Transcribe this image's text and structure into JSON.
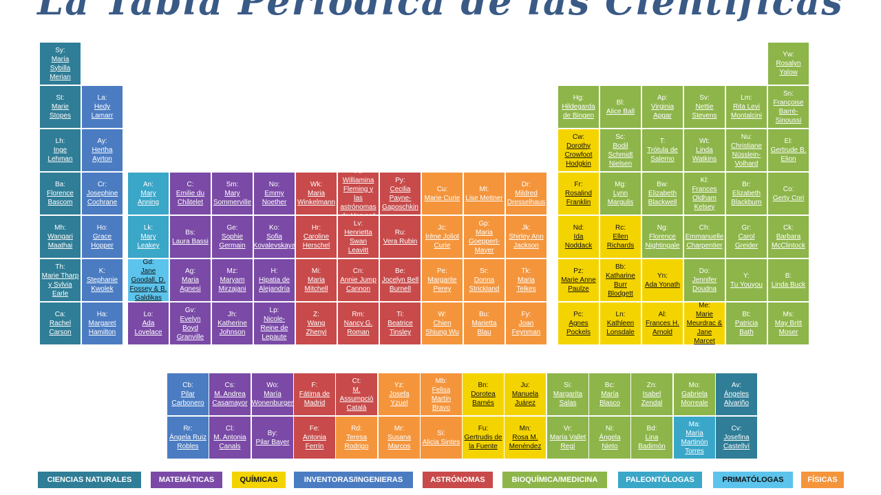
{
  "title": "La Tabla Periódica de las Científicas",
  "colors": {
    "naturales": "#2f7d96",
    "matematicas": "#7a4aa6",
    "quimicas": "#f4d400",
    "inventoras": "#4b7cc2",
    "astronomas": "#c84a4a",
    "bioquimica": "#8db54a",
    "paleontologas": "#3aa6c8",
    "primatologas": "#5cc4ec",
    "fisicas": "#f4953c"
  },
  "main": [
    [
      {
        "s": "Sy:",
        "n": "María Sybilla Merian",
        "c": "naturales"
      }
    ],
    [
      {
        "s": "St:",
        "n": "Marie Stopes",
        "c": "naturales"
      },
      {
        "s": "La:",
        "n": "Hedy Lamarr",
        "c": "inventoras"
      }
    ],
    [
      {
        "s": "Lh:",
        "n": "Inge Lehman",
        "c": "naturales"
      },
      {
        "s": "Ay:",
        "n": "Hertha Ayrton",
        "c": "inventoras"
      }
    ],
    [
      {
        "s": "Ba:",
        "n": "Florence Bascom",
        "c": "naturales"
      },
      {
        "s": "Cr:",
        "n": "Josephine Cochrane",
        "c": "inventoras"
      },
      {
        "s": "An:",
        "n": "Mary Anning",
        "c": "paleontologas"
      },
      {
        "s": "C:",
        "n": "Emilie du Châtelet",
        "c": "matematicas"
      },
      {
        "s": "Sm:",
        "n": "Mary Sommerville",
        "c": "matematicas"
      },
      {
        "s": "No:",
        "n": "Emmy Noether",
        "c": "matematicas"
      },
      {
        "s": "Wk:",
        "n": "Maria Winkelmann",
        "c": "astronomas"
      },
      {
        "s": "Fl:",
        "n": "Williamina Fleming y las astrónomas de Harvard",
        "c": "astronomas"
      },
      {
        "s": "Py:",
        "n": "Cecilia Payne-Gaposchkin",
        "c": "astronomas"
      },
      {
        "s": "Cu:",
        "n": "Marie Curie",
        "c": "fisicas"
      },
      {
        "s": "Mt:",
        "n": "Lise Meitner",
        "c": "fisicas"
      },
      {
        "s": "Dr:",
        "n": "Mildred Dresselhaus",
        "c": "fisicas"
      }
    ],
    [
      {
        "s": "Mh:",
        "n": "Wangari Maathai",
        "c": "naturales"
      },
      {
        "s": "Ho:",
        "n": "Grace Hopper",
        "c": "inventoras"
      },
      {
        "s": "Lk:",
        "n": "Mary Leakey",
        "c": "paleontologas"
      },
      {
        "s": "Bs:",
        "n": "Laura Bassi",
        "c": "matematicas"
      },
      {
        "s": "Ge:",
        "n": "Sophie Germain",
        "c": "matematicas"
      },
      {
        "s": "Ko:",
        "n": "Sofia Kovalevskaya",
        "c": "matematicas"
      },
      {
        "s": "Hr:",
        "n": "Caroline Herschel",
        "c": "astronomas"
      },
      {
        "s": "Lv:",
        "n": "Henrietta Swan Leavitt",
        "c": "astronomas"
      },
      {
        "s": "Ru:",
        "n": "Vera Rubin",
        "c": "astronomas"
      },
      {
        "s": "Jc:",
        "n": "Irène Joliot Curie",
        "c": "fisicas"
      },
      {
        "s": "Gp:",
        "n": "Maria Goeppert-Mayer",
        "c": "fisicas"
      },
      {
        "s": "Jk:",
        "n": "Shirley Ann Jackson",
        "c": "fisicas"
      }
    ],
    [
      {
        "s": "Th:",
        "n": "Marie Tharp y Sylvia Earle",
        "c": "naturales"
      },
      {
        "s": "K:",
        "n": "Stephanie Kwolek",
        "c": "inventoras"
      },
      {
        "s": "Gd:",
        "n": "Jane Goodall, D. Fossey & B. Galdikas",
        "c": "primatologas"
      },
      {
        "s": "Ag:",
        "n": "Maria Agnesi",
        "c": "matematicas"
      },
      {
        "s": "Mz:",
        "n": "Maryam Mirzajani",
        "c": "matematicas"
      },
      {
        "s": "H:",
        "n": "Hipatia de Alejandría",
        "c": "matematicas"
      },
      {
        "s": "Mi:",
        "n": "Maria Mitchell",
        "c": "astronomas"
      },
      {
        "s": "Cn:",
        "n": "Annie Jump Cannon",
        "c": "astronomas"
      },
      {
        "s": "Be:",
        "n": "Jocelyn Bell Burnell",
        "c": "astronomas"
      },
      {
        "s": "Pe:",
        "n": "Margarite Perey",
        "c": "fisicas"
      },
      {
        "s": "Sr:",
        "n": "Donna Strickland",
        "c": "fisicas"
      },
      {
        "s": "Tk:",
        "n": "Maria Telkes",
        "c": "fisicas"
      }
    ],
    [
      {
        "s": "Ca:",
        "n": "Rachel Carson",
        "c": "naturales"
      },
      {
        "s": "Ha:",
        "n": "Margaret Hamilton",
        "c": "inventoras"
      },
      {
        "s": "Lo:",
        "n": "Ada Lovelace",
        "c": "matematicas"
      },
      {
        "s": "Gv:",
        "n": "Evelyn Boyd Granville",
        "c": "matematicas"
      },
      {
        "s": "Jh:",
        "n": "Katherine Johnson",
        "c": "matematicas"
      },
      {
        "s": "Lp:",
        "n": "Nicole-Reine de Lepaute",
        "c": "matematicas"
      },
      {
        "s": "Z:",
        "n": "Wang Zhenyi",
        "c": "astronomas"
      },
      {
        "s": "Rm:",
        "n": "Nancy G. Roman",
        "c": "astronomas"
      },
      {
        "s": "Ti:",
        "n": "Beatrice Tinsley",
        "c": "astronomas"
      },
      {
        "s": "W:",
        "n": "Chien Shiung Wu",
        "c": "fisicas"
      },
      {
        "s": "Bu:",
        "n": "Marietta Blau",
        "c": "fisicas"
      },
      {
        "s": "Fy:",
        "n": "Joan Feynman",
        "c": "fisicas"
      }
    ]
  ],
  "right": [
    [
      {
        "s": "Yw:",
        "n": "Rosalyn Yalow",
        "c": "bioquimica"
      }
    ],
    [
      {
        "s": "Hg:",
        "n": "Hildegarda de Bingen",
        "c": "bioquimica"
      },
      {
        "s": "Bl:",
        "n": "Alice Ball",
        "c": "bioquimica"
      },
      {
        "s": "Ap:",
        "n": "Virginia Apgar",
        "c": "bioquimica"
      },
      {
        "s": "Sv:",
        "n": "Nettie Stevens",
        "c": "bioquimica"
      },
      {
        "s": "Lm:",
        "n": "Rita Levi Montalcini",
        "c": "bioquimica"
      },
      {
        "s": "Sn:",
        "n": "Françoise Barré-Sinoussi",
        "c": "bioquimica"
      }
    ],
    [
      {
        "s": "Cw:",
        "n": "Dorothy Crowfoot Hodgkin",
        "c": "quimicas"
      },
      {
        "s": "Sc:",
        "n": "Bodil Schmidt Nielsen",
        "c": "bioquimica"
      },
      {
        "s": "T:",
        "n": "Trótula de Salerno",
        "c": "bioquimica"
      },
      {
        "s": "Wt:",
        "n": "Linda Watkins",
        "c": "bioquimica"
      },
      {
        "s": "Nu:",
        "n": "Christiane Nüsslein-Volhard",
        "c": "bioquimica"
      },
      {
        "s": "El:",
        "n": "Gertrude B. Elion",
        "c": "bioquimica"
      }
    ],
    [
      {
        "s": "Fr:",
        "n": "Rosalind Franklin",
        "c": "quimicas"
      },
      {
        "s": "Mg:",
        "n": "Lynn Margulis",
        "c": "bioquimica"
      },
      {
        "s": "Bw:",
        "n": "Elizabeth Blackwell",
        "c": "bioquimica"
      },
      {
        "s": "Kl:",
        "n": "Frances Oldham Kelsey",
        "c": "bioquimica"
      },
      {
        "s": "Br:",
        "n": "Elizabeth Blackburn",
        "c": "bioquimica"
      },
      {
        "s": "Co:",
        "n": "Gerty Cori",
        "c": "bioquimica"
      }
    ],
    [
      {
        "s": "Nd:",
        "n": "Ida Noddack",
        "c": "quimicas"
      },
      {
        "s": "Rc:",
        "n": "Ellen Richards",
        "c": "quimicas"
      },
      {
        "s": "Ng:",
        "n": "Florence Nightingale",
        "c": "bioquimica"
      },
      {
        "s": "Ch:",
        "n": "Emmanuelle Charpentier",
        "c": "bioquimica"
      },
      {
        "s": "Gr:",
        "n": "Carol Greider",
        "c": "bioquimica"
      },
      {
        "s": "Ck:",
        "n": "Barbara McClintock",
        "c": "bioquimica"
      }
    ],
    [
      {
        "s": "Pz:",
        "n": "Marie Anne Paulze",
        "c": "quimicas"
      },
      {
        "s": "Bb:",
        "n": "Katharine Burr Blodgett",
        "c": "quimicas"
      },
      {
        "s": "Yn:",
        "n": "Ada Yonath",
        "c": "quimicas"
      },
      {
        "s": "Do:",
        "n": "Jennifer Doudna",
        "c": "bioquimica"
      },
      {
        "s": "Y:",
        "n": "Tu Youyou",
        "c": "bioquimica"
      },
      {
        "s": "B:",
        "n": "Linda Buck",
        "c": "bioquimica"
      }
    ],
    [
      {
        "s": "Pc:",
        "n": "Agnes Pockels",
        "c": "quimicas"
      },
      {
        "s": "Ln:",
        "n": "Kathleen Lonsdale",
        "c": "quimicas"
      },
      {
        "s": "Al:",
        "n": "Frances H. Arnold",
        "c": "quimicas"
      },
      {
        "s": "Me:",
        "n": "Marie Meurdrac & Jane Marcet",
        "c": "quimicas"
      },
      {
        "s": "Bt:",
        "n": "Patricia Bath",
        "c": "bioquimica"
      },
      {
        "s": "Ms:",
        "n": "May Britt Moser",
        "c": "bioquimica"
      }
    ]
  ],
  "bottom": [
    [
      {
        "s": "Cb:",
        "n": "Pilar Carbonero",
        "c": "inventoras"
      },
      {
        "s": "Cs:",
        "n": "M. Andrea Casamayor",
        "c": "matematicas"
      },
      {
        "s": "Wo:",
        "n": "María Wonenburger",
        "c": "matematicas"
      },
      {
        "s": "F:",
        "n": "Fátima de Madrid",
        "c": "astronomas"
      },
      {
        "s": "Ct:",
        "n": "M. Assumpció Català",
        "c": "astronomas"
      },
      {
        "s": "Yz:",
        "n": "Josefa Yzuel",
        "c": "fisicas"
      },
      {
        "s": "Mb:",
        "n": "Felisa Martín Bravo",
        "c": "fisicas"
      },
      {
        "s": "Bn:",
        "n": "Dorotea Barnés",
        "c": "quimicas"
      },
      {
        "s": "Ju:",
        "n": "Manuela Juárez",
        "c": "quimicas"
      },
      {
        "s": "Si:",
        "n": "Margarita Salas",
        "c": "bioquimica"
      },
      {
        "s": "Bc:",
        "n": "María Blasco",
        "c": "bioquimica"
      },
      {
        "s": "Zn:",
        "n": "Isabel Zendal",
        "c": "bioquimica"
      },
      {
        "s": "Mo:",
        "n": "Gabriela Morreale",
        "c": "bioquimica"
      },
      {
        "s": "Av:",
        "n": "Ángeles Alvariño",
        "c": "naturales"
      }
    ],
    [
      {
        "s": "Rr:",
        "n": "Ángela Ruiz Robles",
        "c": "inventoras"
      },
      {
        "s": "Cl:",
        "n": "M. Antonia Canals",
        "c": "matematicas"
      },
      {
        "s": "By:",
        "n": "Pilar Bayer",
        "c": "matematicas"
      },
      {
        "s": "Fe:",
        "n": "Antonia Ferrín",
        "c": "astronomas"
      },
      {
        "s": "Rd:",
        "n": "Teresa Rodrigo",
        "c": "fisicas"
      },
      {
        "s": "Mr:",
        "n": "Susana Marcos",
        "c": "fisicas"
      },
      {
        "s": "Si:",
        "n": "Alicia Sintes",
        "c": "fisicas"
      },
      {
        "s": "Fu:",
        "n": "Gertrudis de la Fuente",
        "c": "quimicas"
      },
      {
        "s": "Mn:",
        "n": "Rosa M. Menéndez",
        "c": "quimicas"
      },
      {
        "s": "Vr:",
        "n": "María Vallet Regí",
        "c": "bioquimica"
      },
      {
        "s": "Ni:",
        "n": "Ángela Nieto",
        "c": "bioquimica"
      },
      {
        "s": "Bd:",
        "n": "Lina Badimón",
        "c": "bioquimica"
      },
      {
        "s": "Ma:",
        "n": "María Martinón Torres",
        "c": "paleontologas"
      },
      {
        "s": "Cv:",
        "n": "Josefina Castellví",
        "c": "naturales"
      }
    ]
  ],
  "legend": [
    {
      "label": "CIENCIAS NATURALES",
      "c": "naturales"
    },
    {
      "label": "MATEMÁTICAS",
      "c": "matematicas"
    },
    {
      "label": "QUÍMICAS",
      "c": "quimicas"
    },
    {
      "label": "INVENTORAS/INGENIERAS",
      "c": "inventoras"
    },
    {
      "label": "ASTRÓNOMAS",
      "c": "astronomas"
    },
    {
      "label": "BIOQUÍMICA/MEDICINA",
      "c": "bioquimica"
    },
    {
      "label": "PALEONTÓLOGAS",
      "c": "paleontologas"
    },
    {
      "label": "PRIMATÓLOGAS",
      "c": "primatologas"
    },
    {
      "label": "FÍSICAS",
      "c": "fisicas"
    }
  ]
}
